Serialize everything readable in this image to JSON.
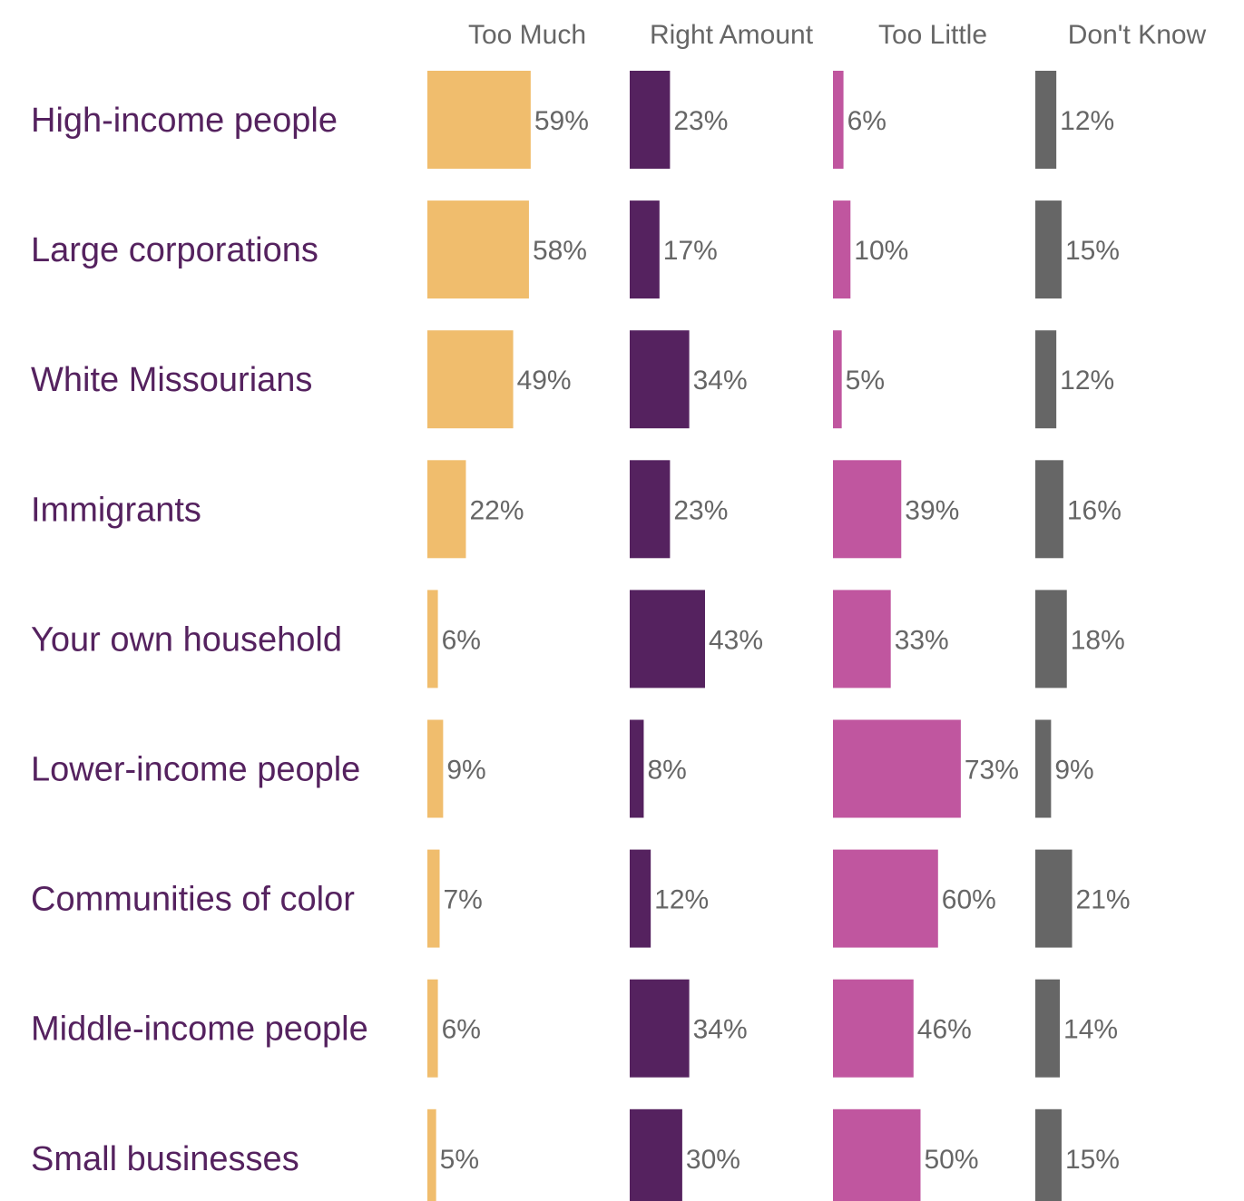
{
  "chart_data": {
    "type": "bar",
    "title": "",
    "xlabel": "",
    "ylabel": "",
    "label_color": "#55225f",
    "value_text_color": "#666666",
    "categories": [
      "High-income people",
      "Large corporations",
      "White Missourians",
      "Immigrants",
      "Your own household",
      "Lower-income people",
      "Communities of color",
      "Middle-income people",
      "Small businesses"
    ],
    "series": [
      {
        "name": "Too Much",
        "color": "#f0bd6d",
        "values": [
          59,
          58,
          49,
          22,
          6,
          9,
          7,
          6,
          5
        ],
        "labels": [
          "59%",
          "58%",
          "49%",
          "22%",
          "6%",
          "9%",
          "7%",
          "6%",
          "5%"
        ]
      },
      {
        "name": "Right Amount",
        "color": "#55225f",
        "values": [
          23,
          17,
          34,
          23,
          43,
          8,
          12,
          34,
          30
        ],
        "labels": [
          "23%",
          "17%",
          "34%",
          "23%",
          "43%",
          "8%",
          "12%",
          "34%",
          "30%"
        ]
      },
      {
        "name": "Too Little",
        "color": "#c0569f",
        "values": [
          6,
          10,
          5,
          39,
          33,
          73,
          60,
          46,
          50
        ],
        "labels": [
          "6%",
          "10%",
          "5%",
          "39%",
          "33%",
          "73%",
          "60%",
          "46%",
          "50%"
        ]
      },
      {
        "name": "Don't Know",
        "color": "#666666",
        "values": [
          12,
          15,
          12,
          16,
          18,
          9,
          21,
          14,
          15
        ],
        "labels": [
          "12%",
          "15%",
          "12%",
          "16%",
          "18%",
          "9%",
          "21%",
          "14%",
          "15%"
        ]
      }
    ]
  }
}
